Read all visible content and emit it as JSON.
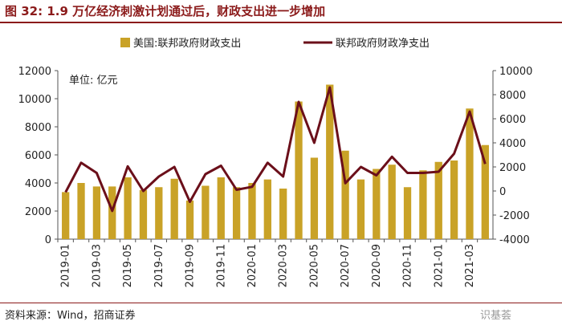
{
  "header": {
    "title": "图 32:  1.9 万亿经济刺激计划通过后，财政支出进一步增加"
  },
  "footer": {
    "source": "资料来源：Wind，招商证券",
    "watermark": "识基荟"
  },
  "colors": {
    "bar": "#c9a227",
    "line": "#6b0f1a",
    "title": "#8b1a1a"
  },
  "chart_data": {
    "type": "bar+line",
    "unit_label": "单位:  亿元",
    "legend": {
      "bar": "美国:联邦政府财政支出",
      "line": "联邦政府财政净支出"
    },
    "categories": [
      "2019-01",
      "2019-02",
      "2019-03",
      "2019-04",
      "2019-05",
      "2019-06",
      "2019-07",
      "2019-08",
      "2019-09",
      "2019-10",
      "2019-11",
      "2019-12",
      "2020-01",
      "2020-02",
      "2020-03",
      "2020-04",
      "2020-05",
      "2020-06",
      "2020-07",
      "2020-08",
      "2020-09",
      "2020-10",
      "2020-11",
      "2020-12",
      "2021-01",
      "2021-02",
      "2021-03",
      "2021-04"
    ],
    "x_tick_labels": [
      "2019-01",
      "2019-03",
      "2019-05",
      "2019-07",
      "2019-09",
      "2019-11",
      "2020-01",
      "2020-03",
      "2020-05",
      "2020-07",
      "2020-09",
      "2020-11",
      "2021-01",
      "2021-03"
    ],
    "series": [
      {
        "name": "美国:联邦政府财政支出",
        "type": "bar",
        "axis": "left",
        "values": [
          3350,
          4000,
          3750,
          3750,
          4400,
          3500,
          3700,
          4300,
          2750,
          3800,
          4400,
          3700,
          4000,
          4250,
          3600,
          9800,
          5800,
          11000,
          6300,
          4250,
          5000,
          5300,
          3700,
          4900,
          5500,
          5600,
          9300,
          6700
        ]
      },
      {
        "name": "联邦政府财政净支出",
        "type": "line",
        "axis": "right",
        "values": [
          -100,
          2350,
          1500,
          -1650,
          2050,
          0,
          1200,
          2000,
          -900,
          1400,
          2100,
          100,
          350,
          2350,
          1200,
          7400,
          4000,
          8600,
          650,
          2000,
          1300,
          2850,
          1500,
          1500,
          1600,
          3100,
          6600,
          2250
        ]
      }
    ],
    "y_left": {
      "min": 0,
      "max": 12000,
      "ticks": [
        0,
        2000,
        4000,
        6000,
        8000,
        10000,
        12000
      ]
    },
    "y_right": {
      "min": -4000,
      "max": 10000,
      "ticks": [
        -4000,
        -2000,
        0,
        2000,
        4000,
        6000,
        8000,
        10000
      ]
    },
    "legend_position": "top-center"
  }
}
